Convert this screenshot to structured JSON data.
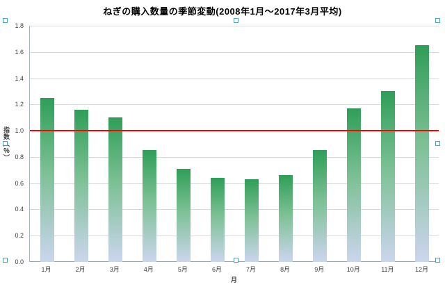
{
  "chart_data": {
    "type": "bar",
    "title": "ねぎの購入数量の季節変動(2008年1月～2017年3月平均)",
    "categories": [
      "1月",
      "2月",
      "3月",
      "4月",
      "5月",
      "6月",
      "7月",
      "8月",
      "9月",
      "10月",
      "11月",
      "12月"
    ],
    "values": [
      1.25,
      1.16,
      1.1,
      0.85,
      0.71,
      0.64,
      0.63,
      0.66,
      0.85,
      1.17,
      1.3,
      1.65
    ],
    "xlabel": "月",
    "ylabel": "指数（％）",
    "ylim": [
      0.0,
      1.8
    ],
    "ytick_step": 0.2,
    "ytick_labels": [
      "0.0",
      "0.2",
      "0.4",
      "0.6",
      "0.8",
      "1.0",
      "1.2",
      "1.4",
      "1.6",
      "1.8"
    ],
    "grid": true,
    "legend": false,
    "reference_line": {
      "value": 1.0,
      "color": "#ff0000"
    },
    "colors": {
      "bar_gradient_top": "#2f9e58",
      "bar_gradient_mid": "#7cc094",
      "bar_gradient_bottom": "#ccd5ee",
      "gridline": "#d9d9d9",
      "axis_line": "#9aa5b1",
      "selection_handle_border": "#4f9fc0"
    }
  }
}
